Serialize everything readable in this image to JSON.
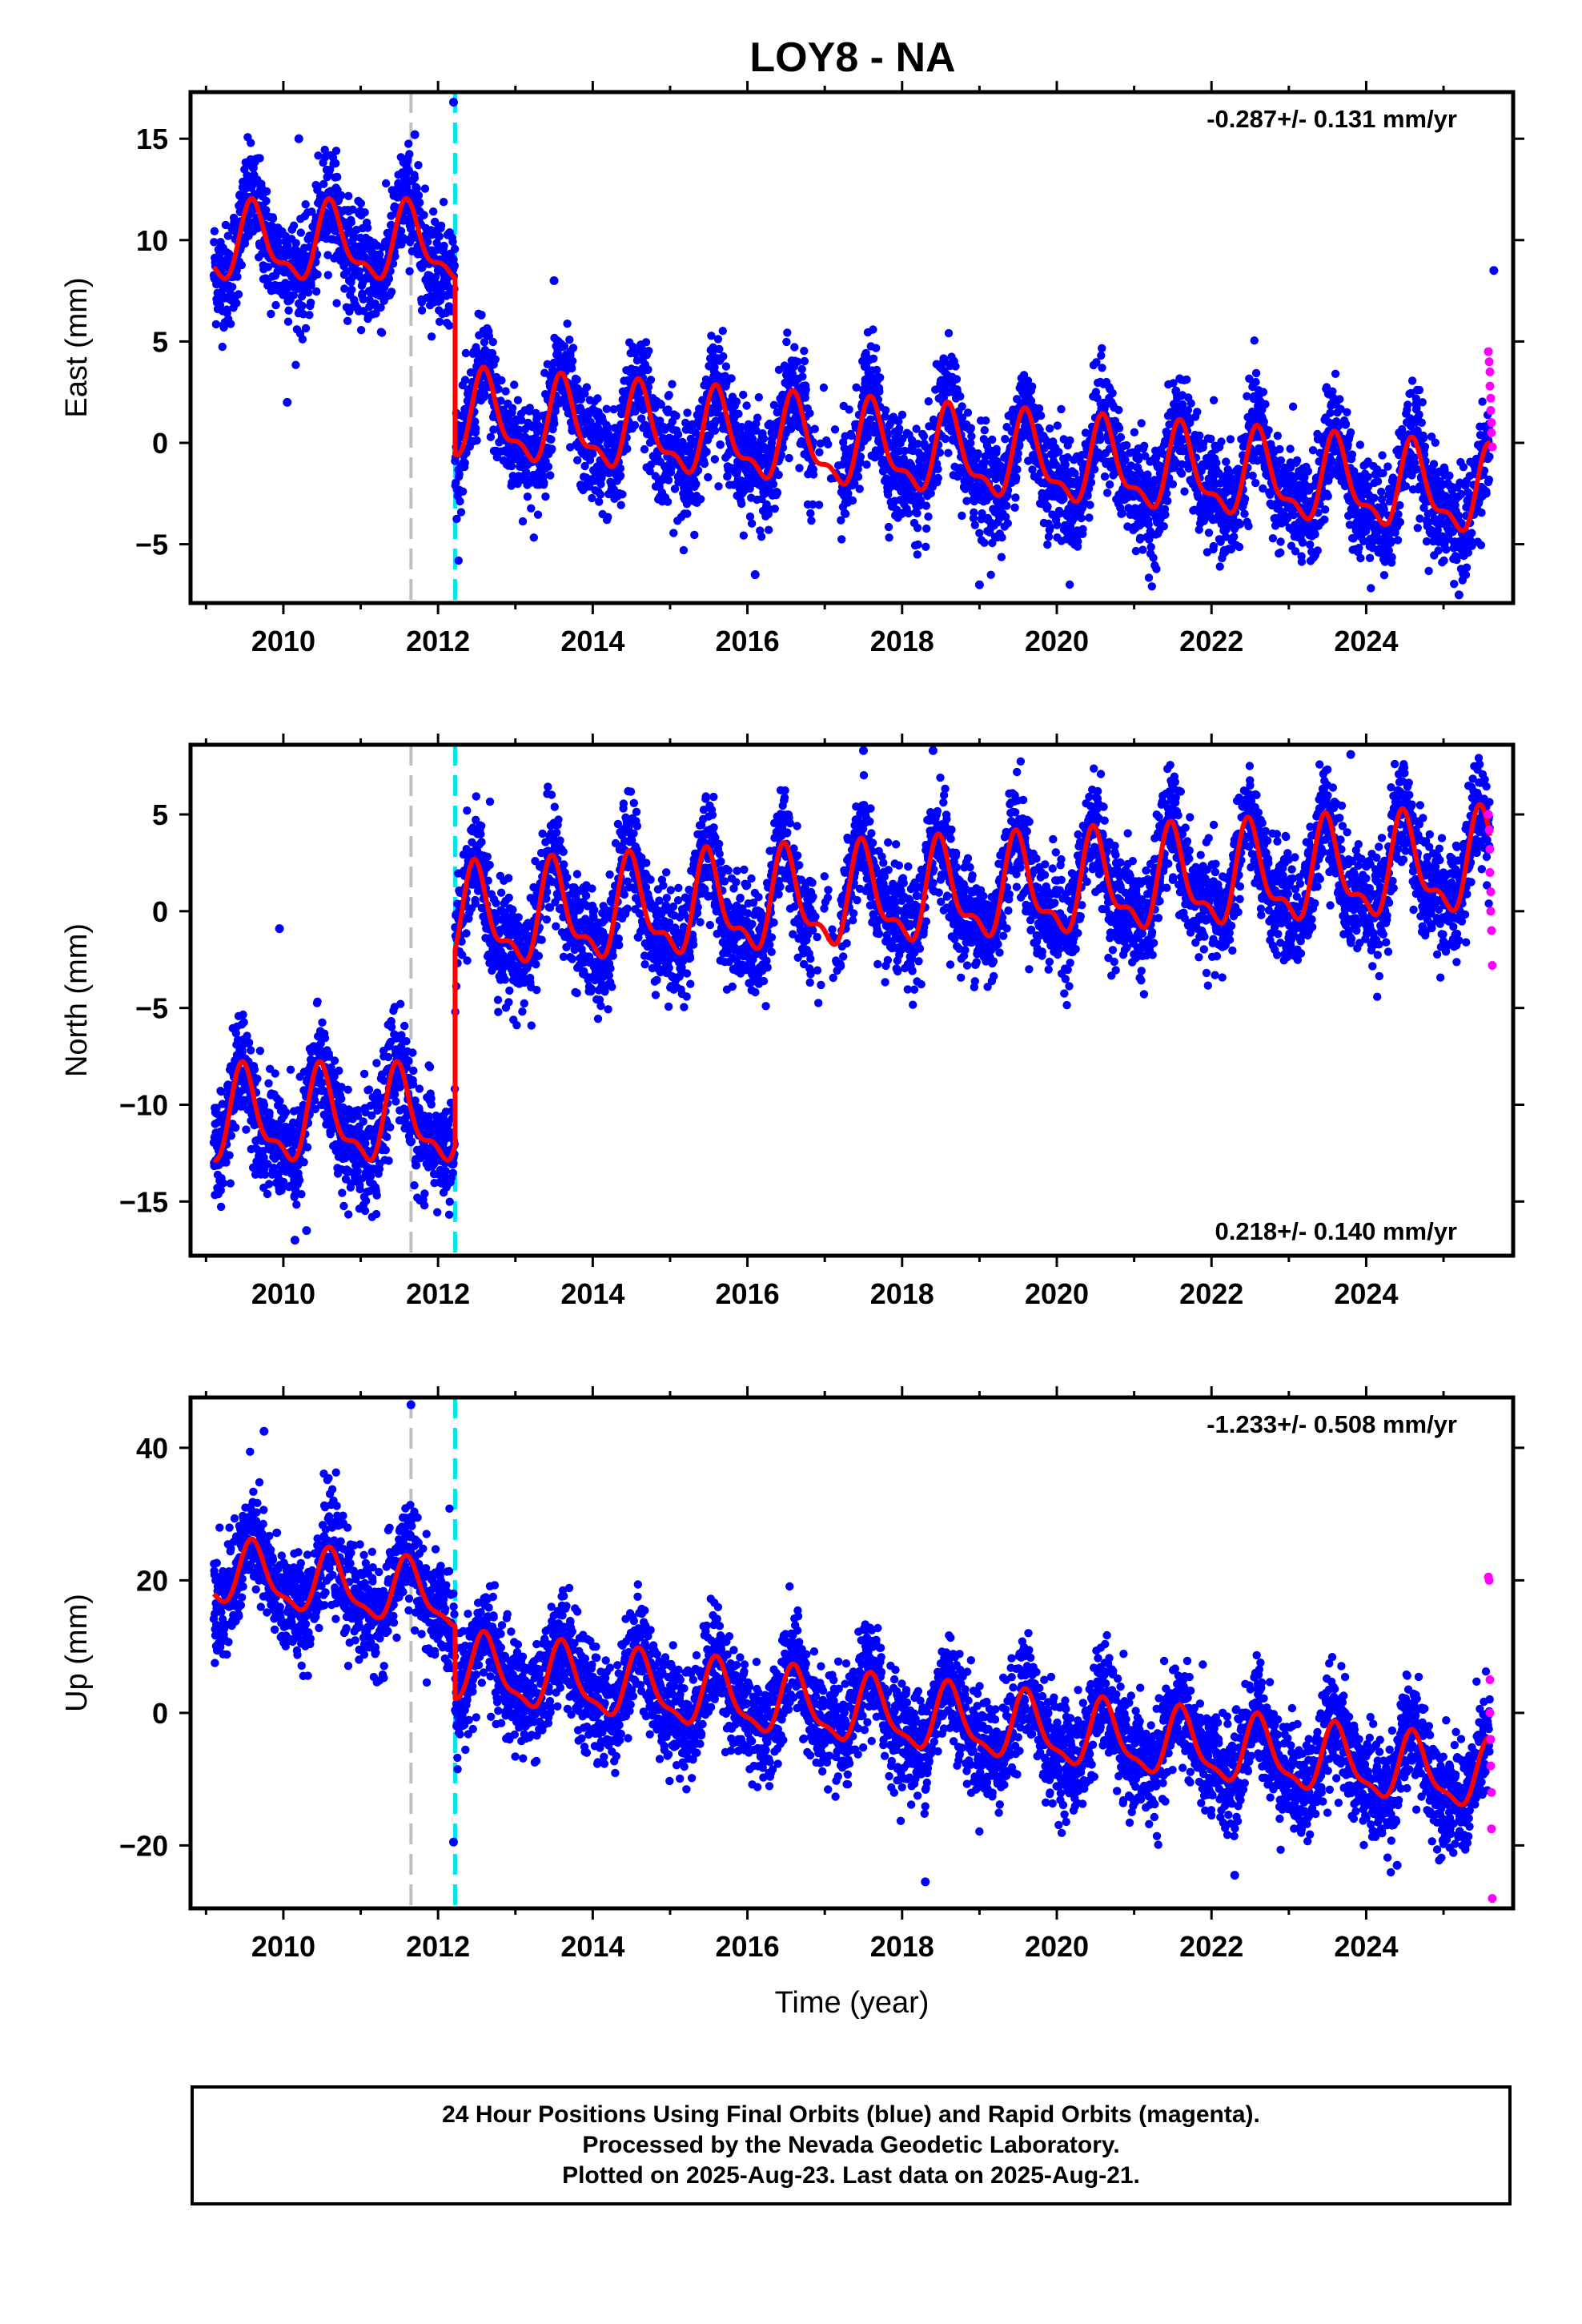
{
  "title": "LOY8 - NA",
  "x_axis_title": "Time (year)",
  "footer": {
    "line1": "24 Hour Positions Using Final Orbits (blue) and Rapid Orbits (magenta).",
    "line2": "Processed by the Nevada Geodetic Laboratory.",
    "line3": "Plotted on 2025-Aug-23. Last data on 2025-Aug-21."
  },
  "colors": {
    "final_orbits": "#0000ff",
    "rapid_orbits": "#ff00ff",
    "model_fit": "#ff0000",
    "equipment_change": "#c0c0c0",
    "earthquake_event": "#00e5ee"
  },
  "chart_data": [
    {
      "type": "scatter",
      "ylabel": "East (mm)",
      "xlim": [
        2008.8,
        2025.9
      ],
      "ylim": [
        -7.9,
        17.3
      ],
      "x_ticks": [
        2010,
        2012,
        2014,
        2016,
        2018,
        2020,
        2022,
        2024
      ],
      "y_ticks": [
        -5,
        0,
        5,
        10,
        15
      ],
      "grid": false,
      "rate_label": "-0.287+/- 0.131 mm/yr",
      "rate_label_position": "top-right",
      "vertical_lines": [
        {
          "x": 2011.65,
          "style": "dashed",
          "color": "#c0c0c0"
        },
        {
          "x": 2012.22,
          "style": "dashed",
          "color": "#00e5ee"
        }
      ],
      "model": {
        "segments": [
          {
            "x_start": 2009.1,
            "x_end": 2012.22,
            "offset": 9.7,
            "rate": 0.0,
            "annual_amp": 1.7,
            "semiannual_amp": 0.7,
            "phase_peak": 0.62
          },
          {
            "x_start": 2012.22,
            "x_end": 2025.6,
            "offset": 1.2,
            "rate": -0.287,
            "annual_amp": 1.9,
            "semiannual_amp": 0.8,
            "phase_peak": 0.62
          }
        ]
      },
      "scatter_noise_mm": 1.3,
      "outliers": [
        [
          2010.05,
          2.0
        ],
        [
          2010.2,
          15.0
        ],
        [
          2011.7,
          15.2
        ],
        [
          2012.2,
          16.8
        ],
        [
          2013.5,
          8.0
        ],
        [
          2016.1,
          -6.5
        ],
        [
          2019.0,
          -7.0
        ],
        [
          2025.2,
          -7.5
        ],
        [
          2025.65,
          8.5
        ]
      ],
      "rapid_points": [
        [
          2025.58,
          4.5
        ],
        [
          2025.59,
          4.0
        ],
        [
          2025.6,
          3.5
        ],
        [
          2025.6,
          2.8
        ],
        [
          2025.61,
          2.2
        ],
        [
          2025.61,
          1.6
        ],
        [
          2025.62,
          1.0
        ],
        [
          2025.62,
          0.5
        ],
        [
          2025.63,
          -0.2
        ]
      ]
    },
    {
      "type": "scatter",
      "ylabel": "North (mm)",
      "xlim": [
        2008.8,
        2025.9
      ],
      "ylim": [
        -17.8,
        8.6
      ],
      "x_ticks": [
        2010,
        2012,
        2014,
        2016,
        2018,
        2020,
        2022,
        2024
      ],
      "y_ticks": [
        -15,
        -10,
        -5,
        0,
        5
      ],
      "grid": false,
      "rate_label": "0.218+/- 0.140 mm/yr",
      "rate_label_position": "bottom-right",
      "vertical_lines": [
        {
          "x": 2011.65,
          "style": "dashed",
          "color": "#c0c0c0"
        },
        {
          "x": 2012.22,
          "style": "dashed",
          "color": "#00e5ee"
        }
      ],
      "model": {
        "segments": [
          {
            "x_start": 2009.1,
            "x_end": 2012.22,
            "offset": -10.8,
            "rate": 0.0,
            "annual_amp": 2.2,
            "semiannual_amp": 0.9,
            "phase_peak": 0.5
          },
          {
            "x_start": 2012.22,
            "x_end": 2025.6,
            "offset": -0.6,
            "rate": 0.218,
            "annual_amp": 2.3,
            "semiannual_amp": 1.0,
            "phase_peak": 0.5
          }
        ]
      },
      "scatter_noise_mm": 1.4,
      "outliers": [
        [
          2009.95,
          -0.9
        ],
        [
          2010.15,
          -17.0
        ],
        [
          2010.3,
          -16.5
        ],
        [
          2017.5,
          8.3
        ],
        [
          2018.4,
          8.3
        ],
        [
          2023.8,
          8.1
        ]
      ],
      "rapid_points": [
        [
          2025.58,
          5.0
        ],
        [
          2025.59,
          4.2
        ],
        [
          2025.6,
          3.2
        ],
        [
          2025.6,
          2.0
        ],
        [
          2025.61,
          1.0
        ],
        [
          2025.61,
          0.0
        ],
        [
          2025.62,
          -1.0
        ],
        [
          2025.63,
          -2.8
        ]
      ]
    },
    {
      "type": "scatter",
      "ylabel": "Up (mm)",
      "xlim": [
        2008.8,
        2025.9
      ],
      "ylim": [
        -29.5,
        47.6
      ],
      "x_ticks": [
        2010,
        2012,
        2014,
        2016,
        2018,
        2020,
        2022,
        2024
      ],
      "y_ticks": [
        -20,
        0,
        20,
        40
      ],
      "grid": false,
      "rate_label": "-1.233+/- 0.508 mm/yr",
      "rate_label_position": "top-right",
      "xlabel": "Time (year)",
      "vertical_lines": [
        {
          "x": 2011.65,
          "style": "dashed",
          "color": "#c0c0c0"
        },
        {
          "x": 2012.22,
          "style": "dashed",
          "color": "#00e5ee"
        }
      ],
      "model": {
        "segments": [
          {
            "x_start": 2009.1,
            "x_end": 2012.22,
            "offset": 21.0,
            "rate": -1.233,
            "annual_amp": 4.5,
            "semiannual_amp": 1.5,
            "phase_peak": 0.62
          },
          {
            "x_start": 2012.22,
            "x_end": 2025.6,
            "offset": 6.5,
            "rate": -1.233,
            "annual_amp": 4.8,
            "semiannual_amp": 1.6,
            "phase_peak": 0.62
          }
        ]
      },
      "scatter_noise_mm": 4.0,
      "outliers": [
        [
          2009.75,
          42.5
        ],
        [
          2011.65,
          46.5
        ],
        [
          2012.2,
          -19.5
        ],
        [
          2018.3,
          -25.5
        ],
        [
          2022.3,
          -24.5
        ],
        [
          2024.4,
          -23.0
        ]
      ],
      "rapid_points": [
        [
          2025.58,
          20.5
        ],
        [
          2025.59,
          20.0
        ],
        [
          2025.6,
          5.0
        ],
        [
          2025.6,
          0.0
        ],
        [
          2025.61,
          -4.0
        ],
        [
          2025.61,
          -8.0
        ],
        [
          2025.62,
          -12.0
        ],
        [
          2025.62,
          -17.5
        ],
        [
          2025.63,
          -28.0
        ]
      ]
    }
  ]
}
